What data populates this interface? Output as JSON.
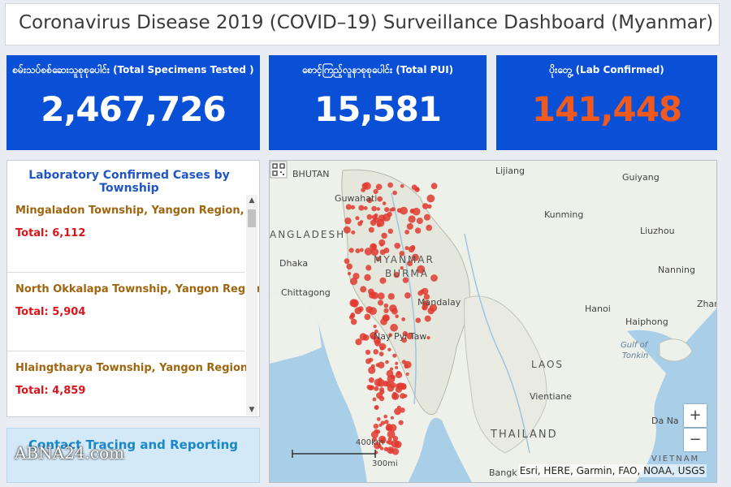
{
  "header": {
    "title": "Coronavirus Disease 2019 (COVID–19) Surveillance Dashboard (Myanmar)"
  },
  "stats": [
    {
      "label": "စမ်းသပ်စစ်ဆေးသူစုစုပေါင်း (Total Specimens Tested )",
      "value": "2,467,726"
    },
    {
      "label": "စောင့်ကြည့်လူနာစုစုပေါင်း (Total PUI)",
      "value": "15,581"
    },
    {
      "label": "ပိုးတွေ့ (Lab Confirmed)",
      "value": "141,448",
      "value_color": "#f05a1e"
    }
  ],
  "township_list": {
    "title": "Laboratory Confirmed Cases by Township",
    "items": [
      {
        "name": "Mingaladon Township, Yangon Region,",
        "total": "Total: 6,112"
      },
      {
        "name": "North Okkalapa Township, Yangon Region,",
        "total": "Total: 5,904"
      },
      {
        "name": "Hlaingtharya Township, Yangon Region,",
        "total": "Total: 4,859"
      }
    ]
  },
  "contact": {
    "label": "Contact Tracing and Reporting"
  },
  "map": {
    "labels": {
      "bhutan": "BHUTAN",
      "lijiang": "Lijiang",
      "guiyang": "Guiyang",
      "guwahati": "Guwahati",
      "kunming": "Kunming",
      "bangladesh": "ANGLADESH",
      "liuzhou": "Liuzhou",
      "dhaka": "Dhaka",
      "myanmar": "MYANMAR",
      "burma": "BURMA",
      "nanning": "Nanning",
      "chittagong": "Chittagong",
      "mandalay": "Mandalay",
      "zhan": "Zhar",
      "hanoi": "Hanoi",
      "haiphong": "Haiphong",
      "naypyitaw": "Nay Pyi Taw",
      "gulf": "Gulf of",
      "tonkin": "Tonkin",
      "laos": "LAOS",
      "vientiane": "Vientiane",
      "thailand": "THAILAND",
      "danang": "Da Na",
      "vietnam": "VIETNAM",
      "bangkok": "Bangk"
    },
    "scale": {
      "km": "400km",
      "mi": "300mi"
    },
    "attribution": "Esri, HERE, Garmin, FAO, NOAA, USGS",
    "zoom_in": "+",
    "zoom_out": "−",
    "land_color": "#eef0ea",
    "water_color": "#a9cfe8",
    "marker_color": "#e0392f"
  },
  "watermark": "ABNA24.com"
}
